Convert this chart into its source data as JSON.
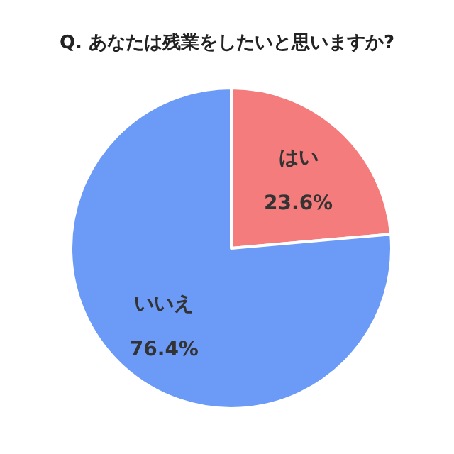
{
  "chart_data": {
    "type": "pie",
    "title": "Q. あなたは残業をしたいと思いますか?",
    "categories": [
      "はい",
      "いいえ"
    ],
    "values": [
      23.6,
      76.4
    ],
    "value_labels": [
      "23.6%",
      "76.4%"
    ],
    "colors": [
      "#f47c7c",
      "#6b9bf7"
    ],
    "legend": false
  }
}
